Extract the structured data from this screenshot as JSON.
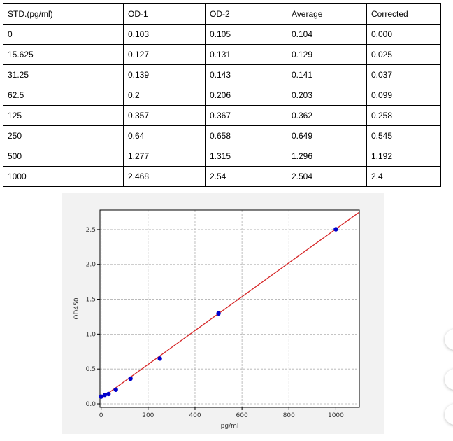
{
  "table": {
    "headers": [
      "STD.(pg/ml)",
      "OD-1",
      "OD-2",
      "Average",
      "Corrected"
    ],
    "rows": [
      [
        "0",
        "0.103",
        "0.105",
        "0.104",
        "0.000"
      ],
      [
        "15.625",
        "0.127",
        "0.131",
        "0.129",
        "0.025"
      ],
      [
        "31.25",
        "0.139",
        "0.143",
        "0.141",
        "0.037"
      ],
      [
        "62.5",
        "0.2",
        "0.206",
        "0.203",
        "0.099"
      ],
      [
        "125",
        "0.357",
        "0.367",
        "0.362",
        "0.258"
      ],
      [
        "250",
        "0.64",
        "0.658",
        "0.649",
        "0.545"
      ],
      [
        "500",
        "1.277",
        "1.315",
        "1.296",
        "1.192"
      ],
      [
        "1000",
        "2.468",
        "2.54",
        "2.504",
        "2.4"
      ]
    ]
  },
  "chart_data": {
    "type": "scatter",
    "title": "",
    "xlabel": "pg/ml",
    "ylabel": "OD450",
    "xlim": [
      -5,
      1100
    ],
    "ylim": [
      -0.05,
      2.78
    ],
    "xticks": [
      0,
      200,
      400,
      600,
      800,
      1000
    ],
    "yticks": [
      0.0,
      0.5,
      1.0,
      1.5,
      2.0,
      2.5
    ],
    "xtick_labels": [
      "0",
      "200",
      "400",
      "600",
      "800",
      "1000"
    ],
    "ytick_labels": [
      "0.0",
      "0.5",
      "1.0",
      "1.5",
      "2.0",
      "2.5"
    ],
    "grid": true,
    "series": [
      {
        "x": [
          0,
          15.625,
          31.25,
          62.5,
          125,
          250,
          500,
          1000
        ],
        "y": [
          0.104,
          0.129,
          0.141,
          0.203,
          0.362,
          0.649,
          1.296,
          2.504
        ],
        "color": "#0000cc"
      }
    ],
    "fit_line": {
      "x": [
        0,
        1100
      ],
      "y": [
        0.08,
        2.75
      ],
      "color": "#d62728"
    }
  },
  "colors": {
    "chart_background": "#f2f2f2",
    "plot_background": "#ffffff",
    "point": "#0000cc",
    "line": "#d62728"
  },
  "side_buttons": [
    {
      "icon": "circle-button-icon"
    },
    {
      "icon": "circle-button-icon"
    },
    {
      "icon": "circle-button-icon"
    }
  ]
}
